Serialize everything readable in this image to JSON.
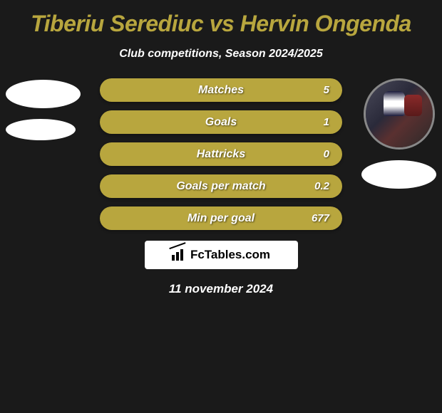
{
  "title": "Tiberiu Serediuc vs Hervin Ongenda",
  "subtitle": "Club competitions, Season 2024/2025",
  "stats": [
    {
      "label": "Matches",
      "value": "5"
    },
    {
      "label": "Goals",
      "value": "1"
    },
    {
      "label": "Hattricks",
      "value": "0"
    },
    {
      "label": "Goals per match",
      "value": "0.2"
    },
    {
      "label": "Min per goal",
      "value": "677"
    }
  ],
  "logo": {
    "text": "FcTables.com"
  },
  "date": "11 november 2024",
  "colors": {
    "background": "#1a1a1a",
    "accent": "#b8a63e",
    "text_white": "#ffffff",
    "text_black": "#000000"
  }
}
